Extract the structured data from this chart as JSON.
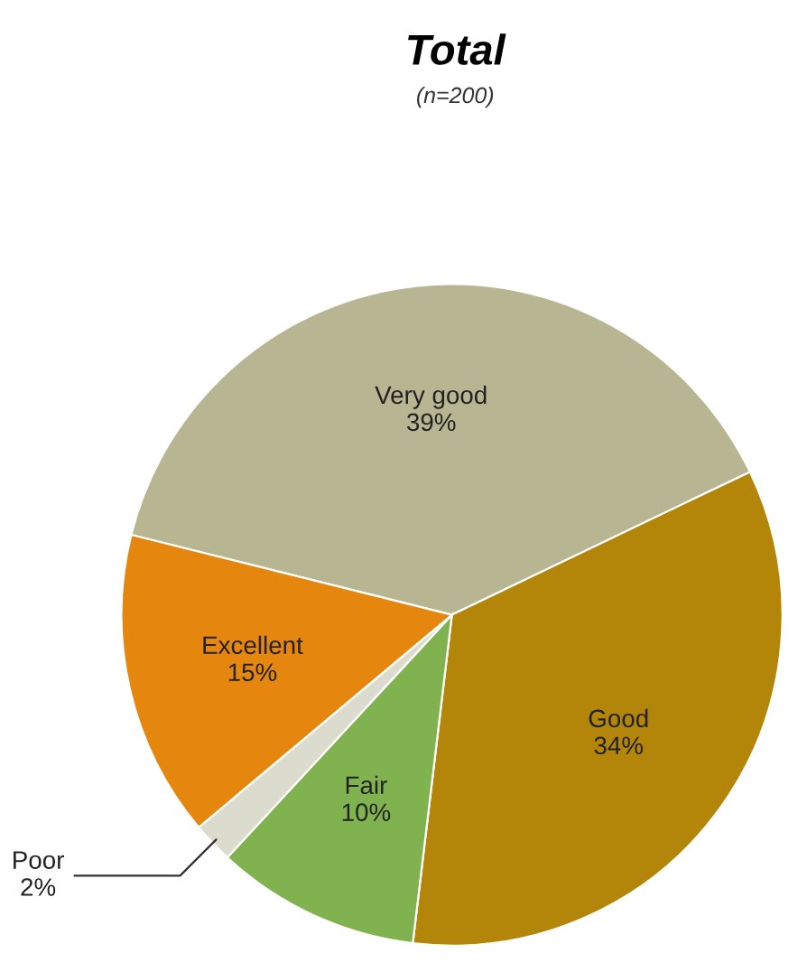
{
  "chart_data": {
    "type": "pie",
    "title": "Total",
    "subtitle": "(n=200)",
    "categories": [
      "Very good",
      "Good",
      "Fair",
      "Poor",
      "Excellent"
    ],
    "values": [
      39,
      34,
      10,
      2,
      15
    ],
    "value_labels": [
      "39%",
      "34%",
      "10%",
      "2%",
      "15%"
    ],
    "colors": [
      "#b7b592",
      "#b38508",
      "#80b34f",
      "#dcdcce",
      "#e5870f"
    ],
    "legend": false
  }
}
